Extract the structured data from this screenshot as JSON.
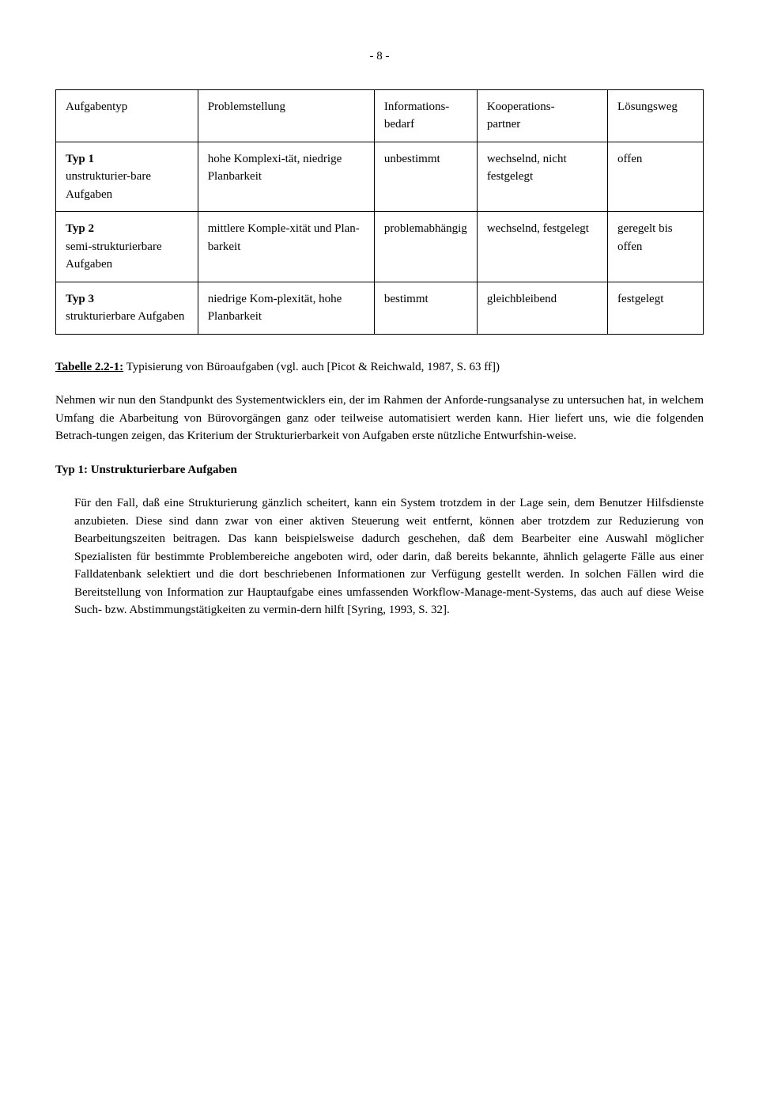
{
  "pageNumber": "- 8 -",
  "table": {
    "headers": [
      "Aufgabentyp",
      "Problemstellung",
      "Informations-\nbedarf",
      "Kooperations-\npartner",
      "Lösungsweg"
    ],
    "rows": [
      {
        "c1_bold": "Typ 1",
        "c1_rest": "unstrukturier-bare Aufgaben",
        "c2": "hohe Komplexi-tät, niedrige Planbarkeit",
        "c3": "unbestimmt",
        "c4": "wechselnd, nicht festgelegt",
        "c5": "offen"
      },
      {
        "c1_bold": "Typ 2",
        "c1_rest": "semi-strukturierbare Aufgaben",
        "c2": "mittlere Komple-xität und Plan-barkeit",
        "c3": "problemabhängig",
        "c4": "wechselnd, festgelegt",
        "c5": "geregelt bis offen"
      },
      {
        "c1_bold": "Typ 3",
        "c1_rest": "strukturierbare Aufgaben",
        "c2": "niedrige Kom-plexität, hohe Planbarkeit",
        "c3": "bestimmt",
        "c4": "gleichbleibend",
        "c5": "festgelegt"
      }
    ]
  },
  "tabLabel": "Tabelle 2.2-1:",
  "tabCaption": "Typisierung von Büroaufgaben (vgl. auch [Picot & Reichwald, 1987, S. 63 ff])",
  "para1": "Nehmen wir nun den Standpunkt des Systementwicklers ein, der im Rahmen der Anforde-rungsanalyse zu untersuchen hat, in welchem Umfang die Abarbeitung von Bürovorgängen ganz oder teilweise automatisiert werden kann. Hier liefert uns, wie die folgenden Betrach-tungen zeigen, das Kriterium der Strukturierbarkeit von Aufgaben erste nützliche Entwurfshin-weise.",
  "heading1": "Typ 1: Unstrukturierbare Aufgaben",
  "para2": "Für den Fall, daß eine Strukturierung gänzlich scheitert, kann ein System trotzdem in der Lage sein, dem Benutzer Hilfsdienste anzubieten. Diese sind dann zwar von einer aktiven Steuerung weit entfernt, können aber trotzdem zur Reduzierung von Bearbeitungszeiten beitragen. Das kann beispielsweise dadurch geschehen, daß dem Bearbeiter eine Auswahl möglicher Spezialisten für bestimmte Problembereiche angeboten wird, oder darin, daß bereits bekannte, ähnlich gelagerte Fälle aus einer Falldatenbank selektiert und die dort beschriebenen Informationen zur Verfügung gestellt werden. In solchen Fällen wird die Bereitstellung von Information zur Hauptaufgabe eines umfassenden Workflow-Manage-ment-Systems, das auch auf diese Weise Such- bzw. Abstimmungstätigkeiten zu vermin-dern hilft [Syring, 1993, S. 32]."
}
